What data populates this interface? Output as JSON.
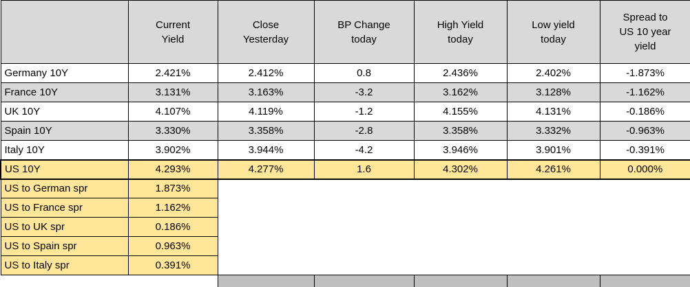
{
  "table": {
    "corner": "",
    "headers": [
      "Current\nYield",
      "Close\nYesterday",
      "BP Change\ntoday",
      "High Yield\ntoday",
      "Low yield\ntoday",
      "Spread to\nUS 10 year\nyield"
    ],
    "bond_rows": [
      [
        "Germany 10Y",
        "2.421%",
        "2.412%",
        "0.8",
        "2.436%",
        "2.402%",
        "-1.873%"
      ],
      [
        "France 10Y",
        "3.131%",
        "3.163%",
        "-3.2",
        "3.162%",
        "3.128%",
        "-1.162%"
      ],
      [
        "UK 10Y",
        "4.107%",
        "4.119%",
        "-1.2",
        "4.155%",
        "4.131%",
        "-0.186%"
      ],
      [
        "Spain 10Y",
        "3.330%",
        "3.358%",
        "-2.8",
        "3.358%",
        "3.332%",
        "-0.963%"
      ],
      [
        "Italy 10Y",
        "3.902%",
        "3.944%",
        "-4.2",
        "3.946%",
        "3.901%",
        "-0.391%"
      ],
      [
        "US 10Y",
        "4.293%",
        "4.277%",
        "1.6",
        "4.302%",
        "4.261%",
        "0.000%"
      ]
    ],
    "spread_rows": [
      [
        "US to German spr",
        "1.873%"
      ],
      [
        "US to France spr",
        "1.162%"
      ],
      [
        "US to UK spr",
        "0.186%"
      ],
      [
        "US to Spain spr",
        "0.963%"
      ],
      [
        "US to Italy spr",
        "0.391%"
      ]
    ],
    "colors": {
      "header_bg": "#d9d9d9",
      "alt_row_bg": "#d9d9d9",
      "highlight_bg": "#ffe699",
      "partial_row_bg": "#bfbfbf",
      "border": "#000000"
    }
  }
}
